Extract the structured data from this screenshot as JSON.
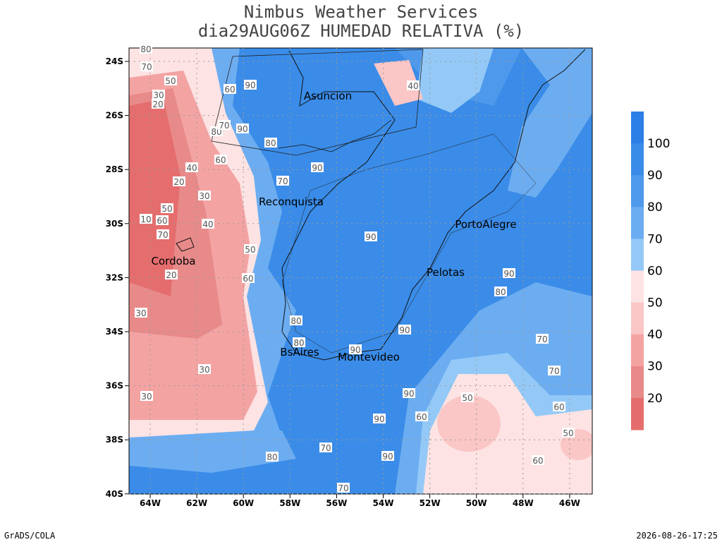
{
  "header": {
    "title": [
      "Nimbus Weather Services",
      "dia29AUG06Z HUMEDAD RELATIVA (%)"
    ]
  },
  "map": {
    "lat_labels": [
      "24S",
      "26S",
      "28S",
      "30S",
      "32S",
      "34S",
      "36S",
      "38S",
      "40S"
    ],
    "lon_labels": [
      "64W",
      "62W",
      "60W",
      "58W",
      "56W",
      "54W",
      "52W",
      "50W",
      "48W",
      "46W"
    ],
    "cities": [
      "Asuncion",
      "Reconquista",
      "Cordoba",
      "PortoAlegre",
      "Pelotas",
      "BsAires",
      "Montevideo"
    ],
    "contour_labels": [
      "80",
      "70",
      "50",
      "30",
      "20",
      "60",
      "90",
      "80",
      "70",
      "90",
      "40",
      "30",
      "20",
      "50",
      "10",
      "60",
      "70",
      "40",
      "20",
      "30",
      "30",
      "30",
      "90",
      "80",
      "70",
      "60",
      "90",
      "90",
      "90",
      "90",
      "80",
      "70",
      "70",
      "60",
      "50",
      "60",
      "50",
      "90",
      "80",
      "80",
      "90",
      "70",
      "90",
      "80",
      "70",
      "60",
      "60",
      "50",
      "40"
    ]
  },
  "colorbar": {
    "labels": [
      "100",
      "90",
      "80",
      "70",
      "60",
      "50",
      "40",
      "30",
      "20"
    ],
    "colors": [
      "#2b7fe6",
      "#3a8ce8",
      "#4e99ec",
      "#6cadf1",
      "#94c9f7",
      "#fde3e3",
      "#fbc6c6",
      "#f4a3a3",
      "#e88a8a",
      "#e56d6d"
    ]
  },
  "footer": {
    "left": "GrADS/COLA",
    "right": "2026-08-26-17:25"
  }
}
